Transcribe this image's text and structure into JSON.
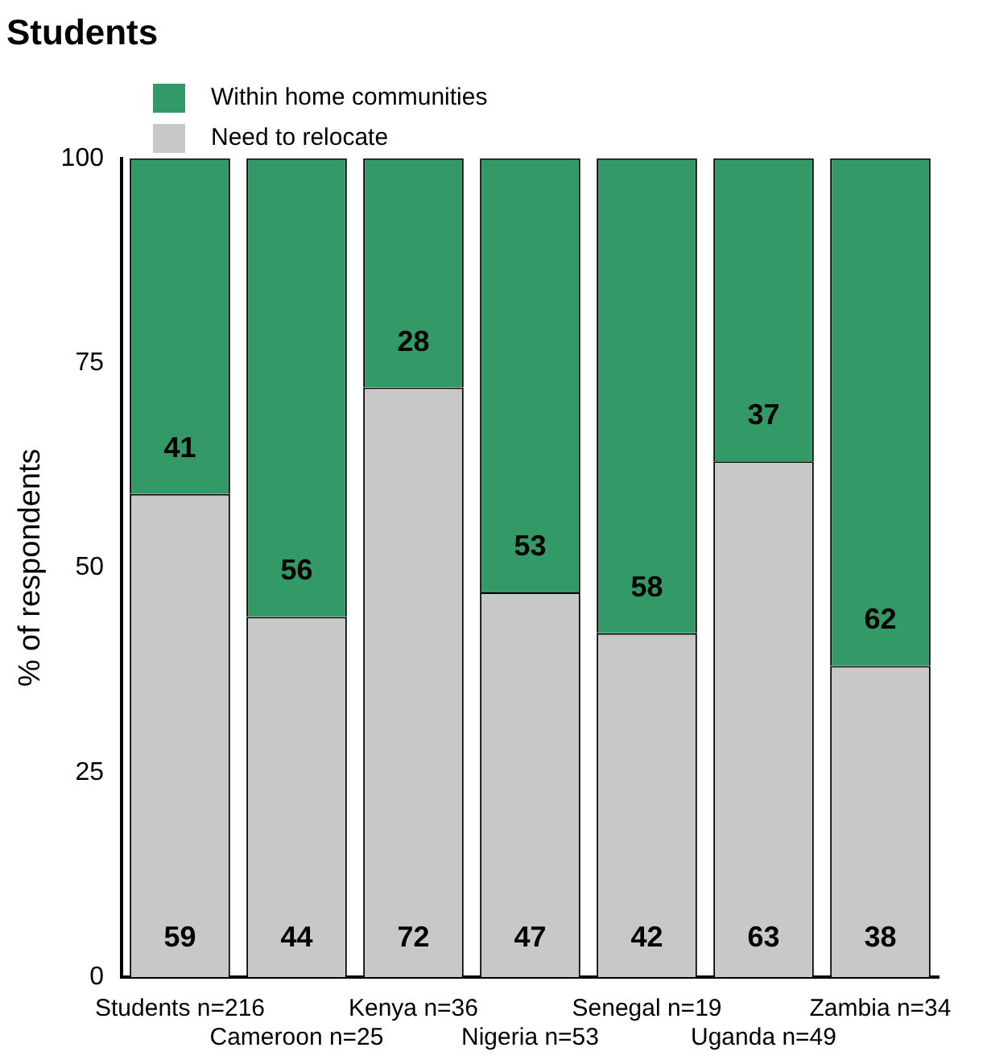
{
  "chart_data": {
    "type": "bar",
    "title": "Students",
    "ylabel": "% of respondents",
    "categories": [
      "Students n=216",
      "Cameroon n=25",
      "Kenya n=36",
      "Nigeria n=53",
      "Senegal n=19",
      "Uganda n=49",
      "Zambia n=34"
    ],
    "series": [
      {
        "name": "Need to relocate",
        "color": "#c8c8c8",
        "values": [
          59,
          44,
          72,
          47,
          42,
          63,
          38
        ]
      },
      {
        "name": "Within home communities",
        "color": "#339966",
        "values": [
          41,
          56,
          28,
          53,
          58,
          37,
          62
        ]
      }
    ],
    "stacked": true,
    "ylim": [
      0,
      100
    ],
    "yticks": [
      0,
      25,
      50,
      75,
      100
    ],
    "grid": false,
    "legend": "top left",
    "data_labels": true
  }
}
